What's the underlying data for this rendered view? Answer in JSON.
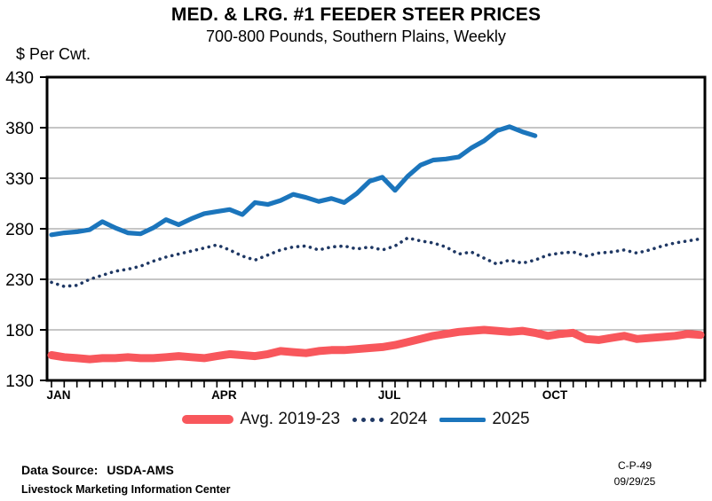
{
  "header": {
    "title": "MED. & LRG. #1 FEEDER STEER PRICES",
    "subtitle": "700-800 Pounds, Southern Plains, Weekly"
  },
  "chart_data": {
    "type": "line",
    "title": "MED. & LRG. #1 FEEDER STEER PRICES",
    "subtitle": "700-800 Pounds, Southern Plains, Weekly",
    "ylabel": "$ Per Cwt.",
    "xlabel": "",
    "ylim": [
      130,
      430
    ],
    "yticks": [
      130,
      180,
      230,
      280,
      330,
      380,
      430
    ],
    "grid": "horizontal",
    "x_unit": "week-of-year",
    "weeks": 52,
    "month_ticks": [
      {
        "label": "JAN",
        "week_index": 0
      },
      {
        "label": "APR",
        "week_index": 13
      },
      {
        "label": "JUL",
        "week_index": 26
      },
      {
        "label": "OCT",
        "week_index": 39
      }
    ],
    "legend_position": "bottom-center",
    "series": [
      {
        "name": "Avg. 2019-23",
        "style": "thick-solid",
        "color": "#F8575C",
        "values": [
          155,
          153,
          152,
          151,
          152,
          152,
          153,
          152,
          152,
          153,
          154,
          153,
          152,
          154,
          156,
          155,
          154,
          156,
          159,
          158,
          157,
          159,
          160,
          160,
          161,
          162,
          163,
          165,
          168,
          171,
          174,
          176,
          178,
          179,
          180,
          179,
          178,
          179,
          177,
          174,
          176,
          177,
          171,
          170,
          172,
          174,
          171,
          172,
          173,
          174,
          176,
          175
        ]
      },
      {
        "name": "2024",
        "style": "dotted",
        "color": "#1F3864",
        "values": [
          227,
          223,
          224,
          230,
          234,
          238,
          240,
          243,
          248,
          252,
          255,
          258,
          261,
          264,
          259,
          253,
          249,
          254,
          259,
          262,
          263,
          259,
          262,
          263,
          260,
          262,
          259,
          263,
          271,
          268,
          266,
          262,
          255,
          257,
          251,
          245,
          249,
          246,
          249,
          254,
          256,
          257,
          253,
          256,
          257,
          259,
          256,
          259,
          263,
          266,
          268,
          270
        ]
      },
      {
        "name": "2025",
        "style": "solid",
        "color": "#1B75BC",
        "values": [
          274,
          276,
          277,
          279,
          287,
          281,
          276,
          275,
          281,
          289,
          284,
          290,
          295,
          297,
          299,
          294,
          306,
          304,
          308,
          314,
          311,
          307,
          310,
          306,
          315,
          327,
          331,
          318,
          332,
          343,
          348,
          349,
          351,
          360,
          367,
          377,
          381,
          376,
          372
        ]
      }
    ]
  },
  "legend": {
    "items": [
      {
        "label": "Avg. 2019-23"
      },
      {
        "label": "2024"
      },
      {
        "label": "2025"
      }
    ]
  },
  "footer": {
    "source_label": "Data Source:",
    "source_value": "USDA-AMS",
    "org": "Livestock Marketing Information Center",
    "code": "C-P-49",
    "date": "09/29/25"
  }
}
